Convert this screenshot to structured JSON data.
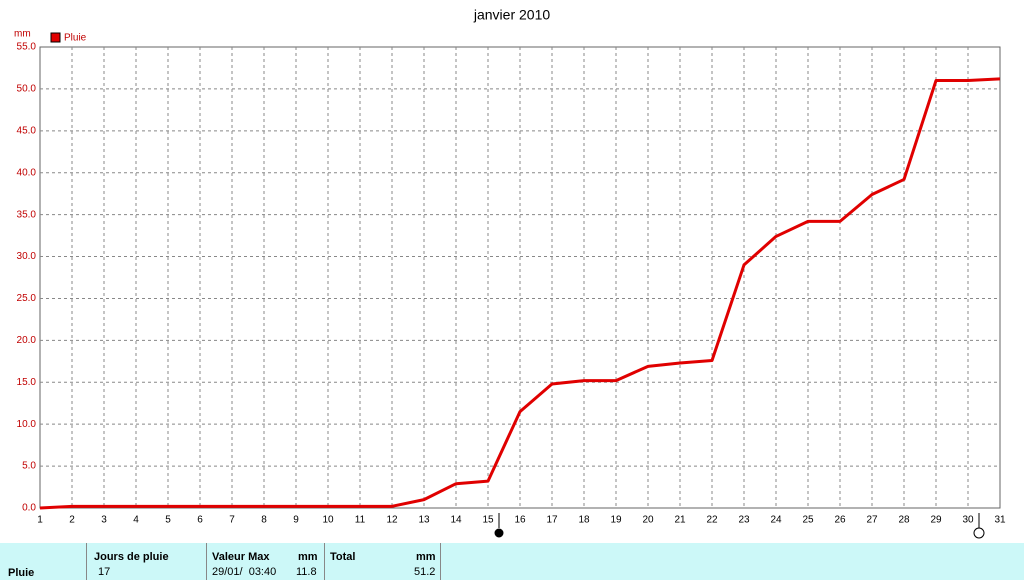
{
  "chart_data": {
    "type": "line",
    "title": "janvier 2010",
    "y_unit": "mm",
    "x": [
      1,
      2,
      3,
      4,
      5,
      6,
      7,
      8,
      9,
      10,
      11,
      12,
      13,
      14,
      15,
      16,
      17,
      18,
      19,
      20,
      21,
      22,
      23,
      24,
      25,
      26,
      27,
      28,
      29,
      30,
      31
    ],
    "series": [
      {
        "name": "Pluie",
        "color": "#e00000",
        "values": [
          0,
          0.2,
          0.2,
          0.2,
          0.2,
          0.2,
          0.2,
          0.2,
          0.2,
          0.2,
          0.2,
          0.2,
          1.0,
          2.9,
          3.2,
          11.5,
          14.8,
          15.2,
          15.2,
          16.9,
          17.3,
          17.6,
          29.0,
          32.4,
          34.2,
          34.2,
          37.4,
          39.2,
          51.0,
          51.0,
          51.2
        ]
      }
    ],
    "xlim": [
      1,
      31
    ],
    "xticks": [
      1,
      2,
      3,
      4,
      5,
      6,
      7,
      8,
      9,
      10,
      11,
      12,
      13,
      14,
      15,
      16,
      17,
      18,
      19,
      20,
      21,
      22,
      23,
      24,
      25,
      26,
      27,
      28,
      29,
      30,
      31
    ],
    "ylim": [
      0,
      55
    ],
    "yticks": [
      {
        "value": 0,
        "label": "0.0"
      },
      {
        "value": 5,
        "label": "5.0"
      },
      {
        "value": 10,
        "label": "10.0"
      },
      {
        "value": 15,
        "label": "15.0"
      },
      {
        "value": 20,
        "label": "20.0"
      },
      {
        "value": 25,
        "label": "25.0"
      },
      {
        "value": 30,
        "label": "30.0"
      },
      {
        "value": 35,
        "label": "35.0"
      },
      {
        "value": 40,
        "label": "40.0"
      },
      {
        "value": 45,
        "label": "45.0"
      },
      {
        "value": 50,
        "label": "50.0"
      },
      {
        "value": 55,
        "label": "55.0"
      }
    ],
    "grid": true
  },
  "table": {
    "headers": [
      "Jours de pluie",
      "Valeur Max",
      "mm",
      "Total",
      "mm"
    ],
    "row": {
      "label": "Pluie",
      "days": "17",
      "max_date": "29/01/  03:40",
      "max": "11.8",
      "total": "51.2"
    }
  }
}
